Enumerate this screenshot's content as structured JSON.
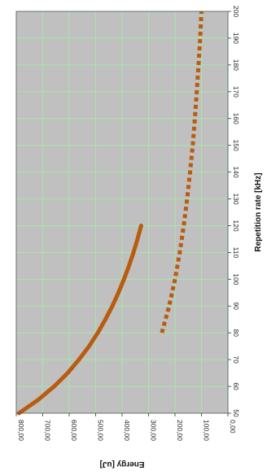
{
  "chart_data": {
    "type": "line",
    "rotation": "rotated 90 degrees clockwise",
    "xlabel": "Repetition rate [kHz]",
    "ylabel": "Energy [uJ]",
    "xlim": [
      50,
      200
    ],
    "ylim": [
      0,
      800
    ],
    "x_ticks": [
      50,
      60,
      70,
      80,
      90,
      100,
      110,
      120,
      130,
      140,
      150,
      160,
      170,
      180,
      190,
      200
    ],
    "x_tick_labels": [
      "50",
      "60",
      "70",
      "80",
      "90",
      "100",
      "110",
      "120",
      "130",
      "140",
      "150",
      "160",
      "170",
      "180",
      "190",
      "200"
    ],
    "y_ticks": [
      0,
      100,
      200,
      300,
      400,
      500,
      600,
      700,
      800
    ],
    "y_tick_labels": [
      "0,00",
      "100,00",
      "200,00",
      "300,00",
      "400,00",
      "500,00",
      "600,00",
      "700,00",
      "800,00"
    ],
    "grid": true,
    "background": "#c0c0c0",
    "grid_color": "#a8e6a8",
    "series": [
      {
        "style": "solid",
        "color": "#b85c10",
        "x": [
          50,
          55,
          60,
          65,
          70,
          75,
          80,
          85,
          90,
          95,
          100,
          105,
          110,
          115,
          120
        ],
        "y": [
          790,
          717,
          657,
          606,
          563,
          525,
          492,
          463,
          437,
          414,
          393,
          374,
          357,
          342,
          328
        ]
      },
      {
        "style": "dotted",
        "color": "#b85c10",
        "x": [
          80,
          90,
          100,
          110,
          120,
          130,
          140,
          150,
          160,
          170,
          180,
          190,
          200
        ],
        "y": [
          250,
          222,
          200,
          182,
          167,
          154,
          143,
          133,
          125,
          118,
          111,
          105,
          100
        ]
      }
    ]
  }
}
